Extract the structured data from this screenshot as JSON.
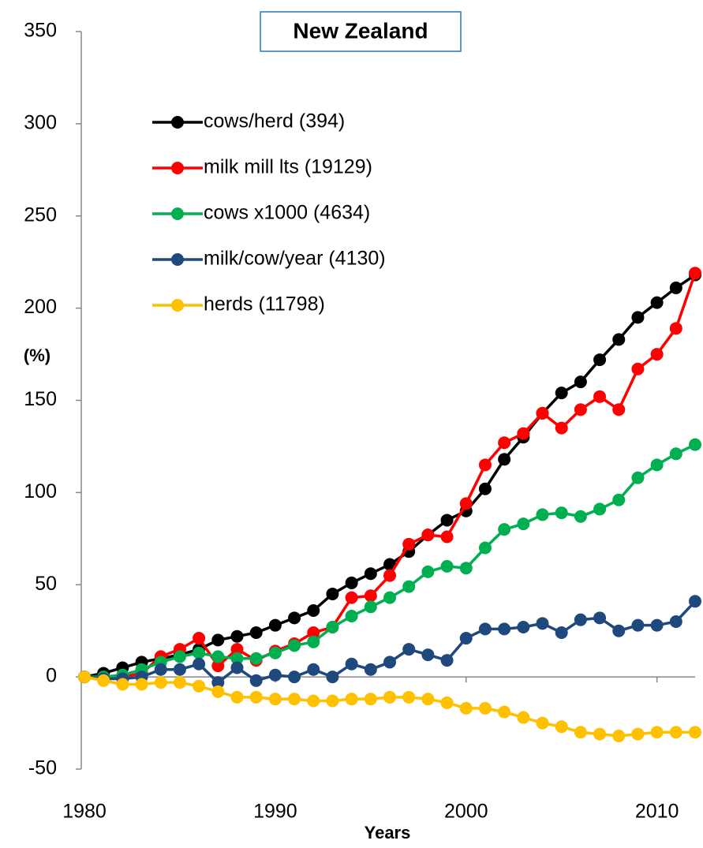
{
  "chart_data": {
    "type": "line",
    "title": "New Zealand",
    "xlabel": "Years",
    "ylabel": "(%)",
    "x": [
      1980,
      1981,
      1982,
      1983,
      1984,
      1985,
      1986,
      1987,
      1988,
      1989,
      1990,
      1991,
      1992,
      1993,
      1994,
      1995,
      1996,
      1997,
      1998,
      1999,
      2000,
      2001,
      2002,
      2003,
      2004,
      2005,
      2006,
      2007,
      2008,
      2009,
      2010,
      2011,
      2012
    ],
    "xlim": [
      1980,
      2012
    ],
    "xticks": [
      1980,
      1990,
      2000,
      2010
    ],
    "ylim": [
      -50,
      350
    ],
    "yticks": [
      -50,
      0,
      50,
      100,
      150,
      200,
      250,
      300,
      350
    ],
    "grid": false,
    "legend": "upper left",
    "series": [
      {
        "name": "cows/herd (394)",
        "color": "#000000",
        "values": [
          0,
          2,
          5,
          8,
          10,
          12,
          15,
          20,
          22,
          24,
          28,
          32,
          36,
          45,
          51,
          56,
          61,
          68,
          77,
          85,
          90,
          102,
          118,
          130,
          143,
          154,
          160,
          172,
          183,
          195,
          203,
          211,
          218
        ]
      },
      {
        "name": "milk mill lts (19129)",
        "color": "#ff0000",
        "values": [
          0,
          0,
          0,
          2,
          11,
          15,
          21,
          6,
          15,
          9,
          14,
          18,
          24,
          27,
          43,
          44,
          55,
          72,
          77,
          76,
          94,
          115,
          127,
          132,
          143,
          135,
          145,
          152,
          145,
          167,
          175,
          189,
          219
        ]
      },
      {
        "name": "cows x1000 (4634)",
        "color": "#00b050",
        "values": [
          0,
          0,
          1,
          4,
          8,
          11,
          13,
          11,
          10,
          10,
          13,
          17,
          19,
          27,
          33,
          38,
          43,
          49,
          57,
          60,
          59,
          70,
          80,
          83,
          88,
          89,
          87,
          91,
          96,
          108,
          115,
          121,
          126
        ]
      },
      {
        "name": "milk/cow/year (4130)",
        "color": "#1f497d",
        "values": [
          0,
          -1,
          -1,
          0,
          4,
          4,
          7,
          -3,
          5,
          -2,
          1,
          0,
          4,
          0,
          7,
          4,
          8,
          15,
          12,
          9,
          21,
          26,
          26,
          27,
          29,
          24,
          31,
          32,
          25,
          28,
          28,
          30,
          41
        ]
      },
      {
        "name": "herds (11798)",
        "color": "#ffc000",
        "values": [
          0,
          -2,
          -4,
          -4,
          -3,
          -3,
          -5,
          -8,
          -11,
          -11,
          -12,
          -12,
          -13,
          -13,
          -12,
          -12,
          -11,
          -11,
          -12,
          -14,
          -17,
          -17,
          -19,
          -22,
          -25,
          -27,
          -30,
          -31,
          -32,
          -31,
          -30,
          -30,
          -30
        ]
      }
    ]
  }
}
